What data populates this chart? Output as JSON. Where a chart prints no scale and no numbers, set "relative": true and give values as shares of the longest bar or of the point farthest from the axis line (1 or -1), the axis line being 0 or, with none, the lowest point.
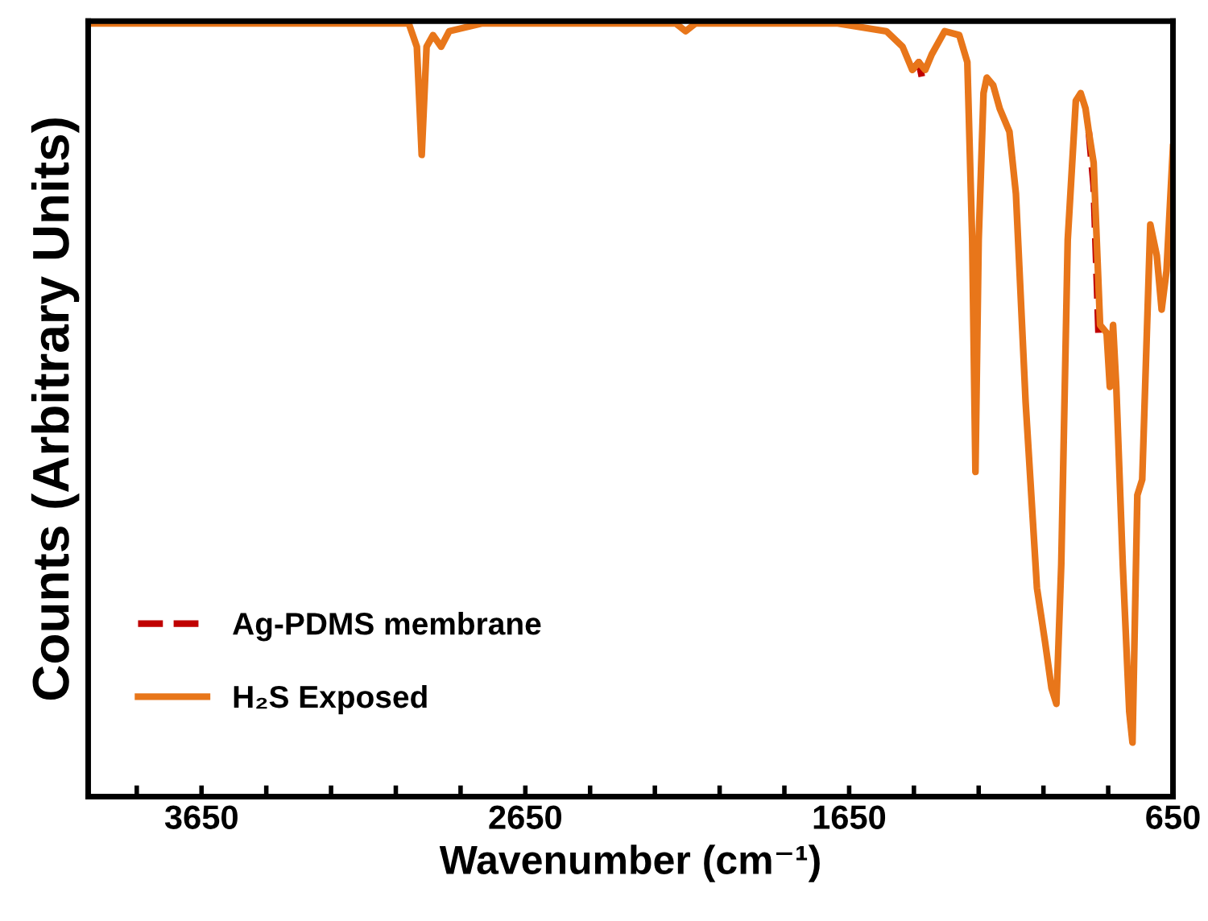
{
  "chart_data": {
    "type": "line",
    "relative": true,
    "xlabel": "Wavenumber (cm⁻¹)",
    "ylabel": "Counts (Arbitrary Units)",
    "xlim": [
      4000,
      650
    ],
    "xticks": [
      {
        "value": 3850,
        "label": null
      },
      3650,
      {
        "value": 3450,
        "label": null
      },
      {
        "value": 3250,
        "label": null
      },
      {
        "value": 3050,
        "label": null
      },
      {
        "value": 2850,
        "label": null
      },
      2650,
      {
        "value": 2450,
        "label": null
      },
      {
        "value": 2250,
        "label": null
      },
      {
        "value": 2050,
        "label": null
      },
      {
        "value": 1850,
        "label": null
      },
      1650,
      {
        "value": 1450,
        "label": null
      },
      {
        "value": 1250,
        "label": null
      },
      {
        "value": 1050,
        "label": null
      },
      {
        "value": 850,
        "label": null
      },
      650
    ],
    "tick_labels": "x",
    "grid": false,
    "legend": "bottom left",
    "marker": "none",
    "series": [
      {
        "name": "Ag-PDMS membrane",
        "color": "#c00000",
        "line_style": "dashed",
        "x": [
          1455,
          1435,
          1425,
          1415,
          1200,
          910,
          895,
          880
        ],
        "values": [
          0.94,
          0.95,
          0.93,
          0.94,
          null,
          0.86,
          0.79,
          0.6
        ]
      },
      {
        "name": "H₂S Exposed",
        "color": "#e8761a",
        "line_style": "solid",
        "x": [
          4000,
          3010,
          2985,
          2970,
          2955,
          2935,
          2910,
          2885,
          2785,
          2185,
          2155,
          2125,
          1935,
          1685,
          1535,
          1485,
          1455,
          1435,
          1415,
          1395,
          1355,
          1310,
          1285,
          1270,
          1260,
          1250,
          1235,
          1225,
          1205,
          1185,
          1155,
          1135,
          1105,
          1070,
          1045,
          1025,
          1010,
          995,
          975,
          950,
          935,
          920,
          910,
          895,
          875,
          855,
          845,
          835,
          825,
          805,
          785,
          775,
          760,
          745,
          720,
          700,
          685,
          670,
          650
        ],
        "values": [
          1.0,
          1.0,
          0.97,
          0.83,
          0.97,
          0.985,
          0.97,
          0.99,
          1.0,
          1.0,
          0.99,
          1.0,
          1.0,
          1.0,
          0.99,
          0.97,
          0.94,
          0.95,
          0.94,
          0.96,
          0.99,
          0.985,
          0.95,
          0.72,
          0.42,
          0.72,
          0.91,
          0.93,
          0.92,
          0.89,
          0.86,
          0.78,
          0.51,
          0.27,
          0.2,
          0.14,
          0.12,
          0.3,
          0.72,
          0.9,
          0.91,
          0.89,
          0.86,
          0.82,
          0.61,
          0.6,
          0.53,
          0.61,
          0.53,
          0.3,
          0.11,
          0.07,
          0.39,
          0.41,
          0.74,
          0.7,
          0.63,
          0.68,
          0.84
        ]
      }
    ]
  }
}
